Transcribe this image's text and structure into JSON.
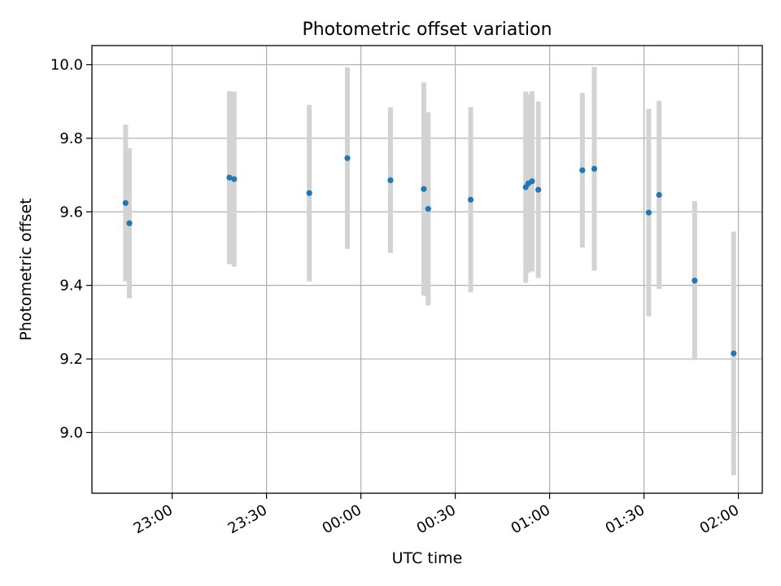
{
  "chart_data": {
    "type": "scatter",
    "title": "Photometric offset variation",
    "xlabel": "UTC time",
    "ylabel": "Photometric offset",
    "x_ticks": [
      "23:00",
      "23:30",
      "00:00",
      "00:30",
      "01:00",
      "01:30",
      "02:00"
    ],
    "y_ticks": [
      "9.0",
      "9.2",
      "9.4",
      "9.6",
      "9.8",
      "10.0"
    ],
    "xlim": [
      "22:34.5",
      "02:07.6"
    ],
    "ylim": [
      8.835,
      10.052
    ],
    "grid": true,
    "series": [
      {
        "marker_color": "#1f77b4",
        "errorbar_color": "#d3d3d3",
        "points": [
          {
            "x": "22:45.2",
            "y": 9.624,
            "err": 0.213
          },
          {
            "x": "22:46.4",
            "y": 9.569,
            "err": 0.204
          },
          {
            "x": "23:18.2",
            "y": 9.693,
            "err": 0.235
          },
          {
            "x": "23:19.7",
            "y": 9.689,
            "err": 0.238
          },
          {
            "x": "23:43.6",
            "y": 9.651,
            "err": 0.24
          },
          {
            "x": "23:55.7",
            "y": 9.746,
            "err": 0.247
          },
          {
            "x": "00:09.4",
            "y": 9.686,
            "err": 0.198
          },
          {
            "x": "00:20.0",
            "y": 9.662,
            "err": 0.29
          },
          {
            "x": "00:21.4",
            "y": 9.608,
            "err": 0.263
          },
          {
            "x": "00:34.9",
            "y": 9.633,
            "err": 0.252
          },
          {
            "x": "00:52.4",
            "y": 9.667,
            "err": 0.26
          },
          {
            "x": "00:53.2",
            "y": 9.677,
            "err": 0.243
          },
          {
            "x": "00:54.4",
            "y": 9.683,
            "err": 0.245
          },
          {
            "x": "00:56.4",
            "y": 9.66,
            "err": 0.24
          },
          {
            "x": "01:10.4",
            "y": 9.713,
            "err": 0.21
          },
          {
            "x": "01:14.2",
            "y": 9.717,
            "err": 0.277
          },
          {
            "x": "01:31.5",
            "y": 9.598,
            "err": 0.282
          },
          {
            "x": "01:34.8",
            "y": 9.646,
            "err": 0.256
          },
          {
            "x": "01:46.1",
            "y": 9.413,
            "err": 0.216
          },
          {
            "x": "01:58.5",
            "y": 9.215,
            "err": 0.331
          }
        ]
      }
    ]
  }
}
